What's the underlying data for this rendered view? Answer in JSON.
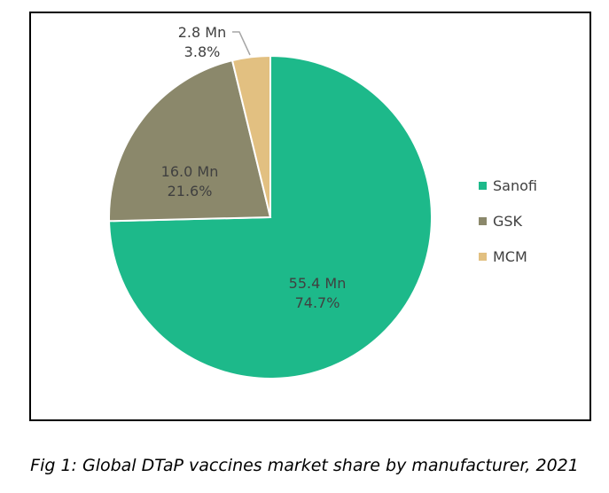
{
  "chart_data": {
    "type": "pie",
    "title": "",
    "categories": [
      "Sanofi",
      "GSK",
      "MCM"
    ],
    "values_mn": [
      55.4,
      16.0,
      2.8
    ],
    "percentages": [
      74.7,
      21.6,
      3.8
    ],
    "data_labels": [
      {
        "value": "55.4 Mn",
        "percent": "74.7%"
      },
      {
        "value": "16.0 Mn",
        "percent": "21.6%"
      },
      {
        "value": "2.8 Mn",
        "percent": "3.8%"
      }
    ],
    "colors": [
      "#1db98a",
      "#8b886b",
      "#e2c081"
    ],
    "start": "top, clockwise",
    "legend": "right"
  },
  "caption": "Fig 1: Global DTaP vaccines market share by manufacturer, 2021"
}
